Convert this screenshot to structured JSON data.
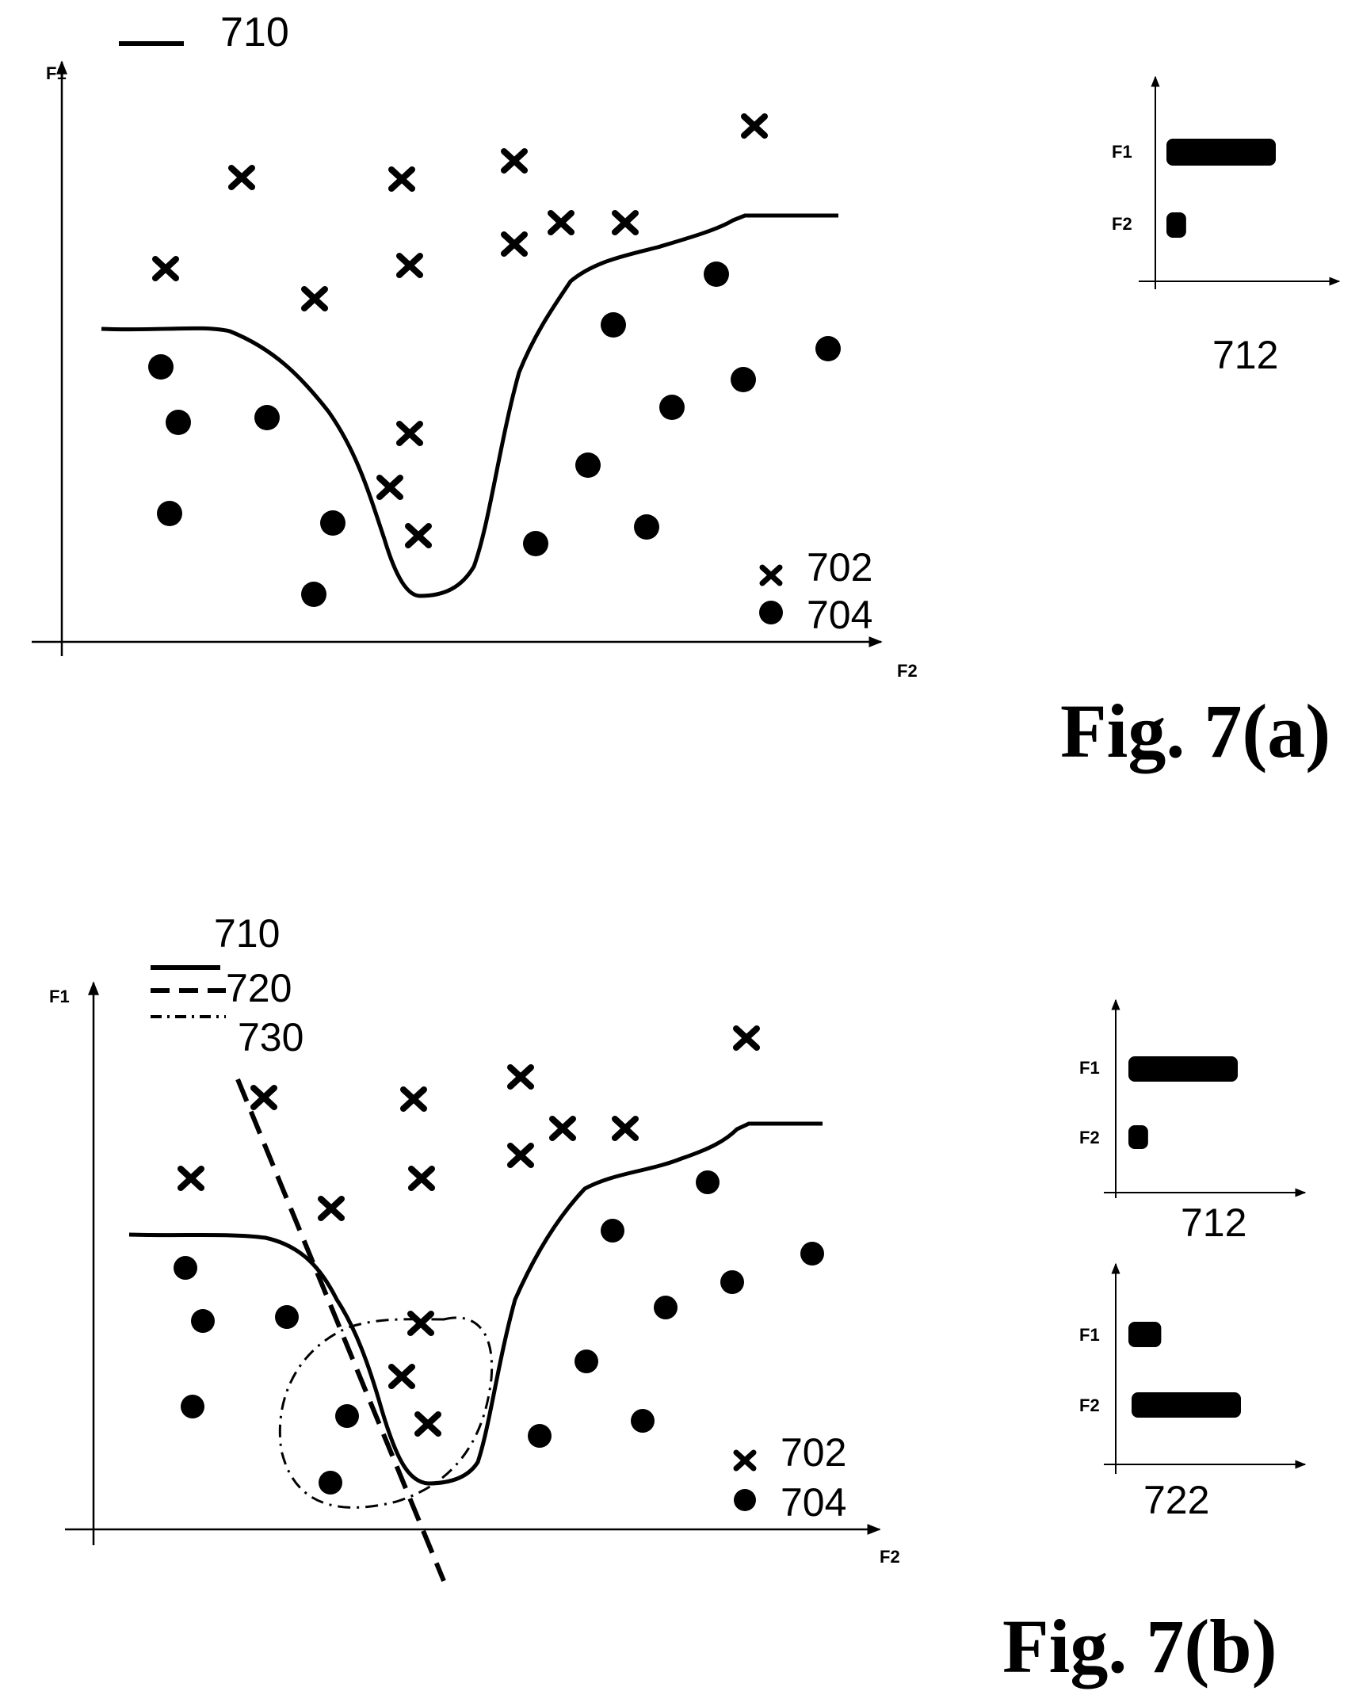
{
  "figure_a": {
    "caption": "Fig. 7(a)",
    "axis_x_label": "F2",
    "axis_y_label": "F1",
    "legend": {
      "line_710": "710",
      "cross_702": "702",
      "dot_704": "704"
    },
    "inset": {
      "label": "712",
      "bars": [
        {
          "name": "F1",
          "value": 1.0
        },
        {
          "name": "F2",
          "value": 0.18
        }
      ]
    }
  },
  "figure_b": {
    "caption": "Fig. 7(b)",
    "axis_x_label": "F2",
    "axis_y_label": "F1",
    "legend": {
      "line_710": "710",
      "line_720": "720",
      "line_730": "730",
      "cross_702": "702",
      "dot_704": "704"
    },
    "inset_712": {
      "label": "712",
      "bars": [
        {
          "name": "F1",
          "value": 1.0
        },
        {
          "name": "F2",
          "value": 0.18
        }
      ]
    },
    "inset_722": {
      "label": "722",
      "bars": [
        {
          "name": "F1",
          "value": 0.3
        },
        {
          "name": "F2",
          "value": 1.0
        }
      ]
    }
  },
  "colors": {
    "ink": "#000000",
    "background": "#ffffff"
  }
}
